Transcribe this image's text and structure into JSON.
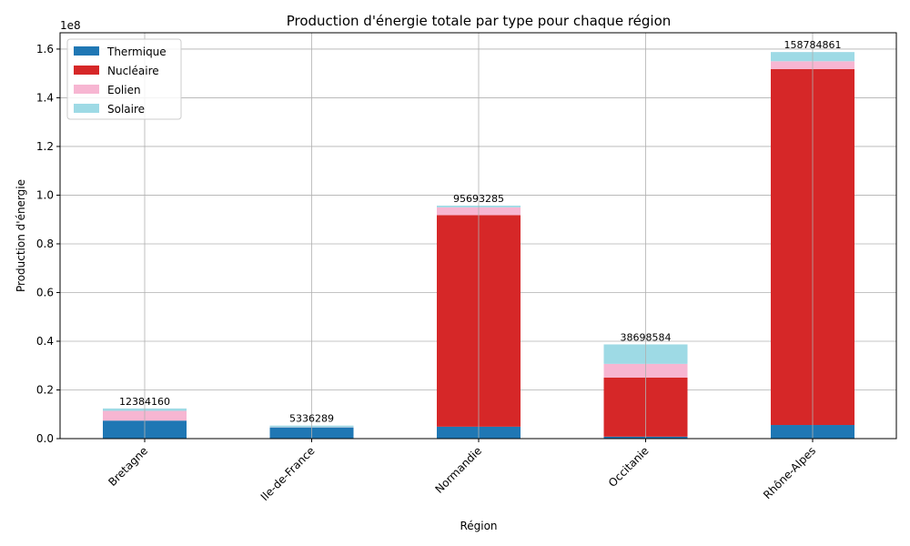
{
  "chart_data": {
    "type": "bar",
    "stacked": true,
    "title": "Production d'énergie totale par type pour chaque région",
    "xlabel": "Région",
    "ylabel": "Production d'énergie",
    "y_offset_text": "1e8",
    "y_scale": 100000000,
    "ylim": [
      0,
      166700000
    ],
    "yticks": [
      0,
      20000000,
      40000000,
      60000000,
      80000000,
      100000000,
      120000000,
      140000000,
      160000000
    ],
    "ytick_labels": [
      "0.0",
      "0.2",
      "0.4",
      "0.6",
      "0.8",
      "1.0",
      "1.2",
      "1.4",
      "1.6"
    ],
    "grid": true,
    "legend_position": "top-left",
    "categories": [
      "Bretagne",
      "Ile-de-France",
      "Normandie",
      "Occitanie",
      "Rhône-Alpes"
    ],
    "totals": [
      "12384160",
      "5336289",
      "95693285",
      "38698584",
      "158784861"
    ],
    "series": [
      {
        "name": "Thermique",
        "color": "#1f77b4",
        "values": [
          7400000,
          4600000,
          4900000,
          800000,
          5600000
        ]
      },
      {
        "name": "Nucléaire",
        "color": "#d62728",
        "values": [
          0,
          0,
          86900000,
          24300000,
          146200000
        ]
      },
      {
        "name": "Eolien",
        "color": "#f7b6d2",
        "values": [
          4000000,
          100000,
          3200000,
          5600000,
          3200000
        ]
      },
      {
        "name": "Solaire",
        "color": "#9edae5",
        "values": [
          984160,
          636289,
          693285,
          7998584,
          3784861
        ]
      }
    ]
  }
}
